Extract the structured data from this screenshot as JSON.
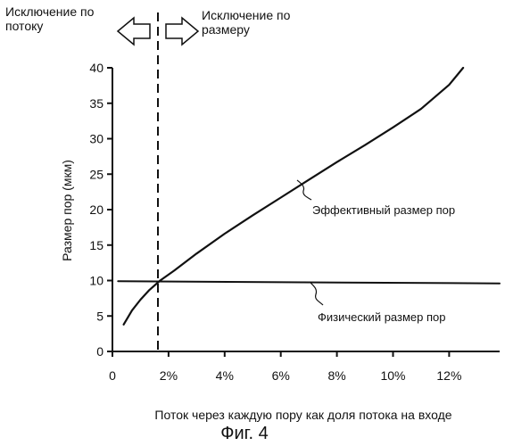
{
  "chart_data": {
    "type": "line",
    "xlabel": "Поток через каждую пору как доля потока на входе",
    "ylabel": "Размер пор (мкм)",
    "x_ticks": [
      "0",
      "2%",
      "4%",
      "6%",
      "8%",
      "10%",
      "12%"
    ],
    "y_ticks": [
      "0",
      "5",
      "10",
      "15",
      "20",
      "25",
      "30",
      "35",
      "40"
    ],
    "xlim": [
      0,
      13.8
    ],
    "ylim": [
      0,
      40
    ],
    "series": [
      {
        "name": "Эффективный размер пор",
        "x": [
          0.4,
          0.7,
          1.0,
          1.3,
          1.7,
          2.2,
          3.0,
          4.0,
          5.0,
          6.0,
          7.0,
          8.0,
          9.0,
          10.0,
          11.0,
          12.0,
          12.5
        ],
        "y": [
          3.8,
          5.8,
          7.3,
          8.6,
          10.0,
          11.4,
          13.8,
          16.6,
          19.2,
          21.7,
          24.2,
          26.7,
          29.1,
          31.6,
          34.2,
          37.6,
          40.0
        ],
        "color": "#111111"
      },
      {
        "name": "Физический размер пор",
        "x": [
          0.2,
          13.8
        ],
        "y": [
          9.9,
          9.6
        ],
        "color": "#111111"
      }
    ],
    "vertical_marker": {
      "x": 1.7,
      "style": "dashed"
    },
    "regions": {
      "left_label": "Исключение по потоку",
      "right_label": "Исключение по размеру"
    },
    "caption": "Фиг. 4"
  }
}
